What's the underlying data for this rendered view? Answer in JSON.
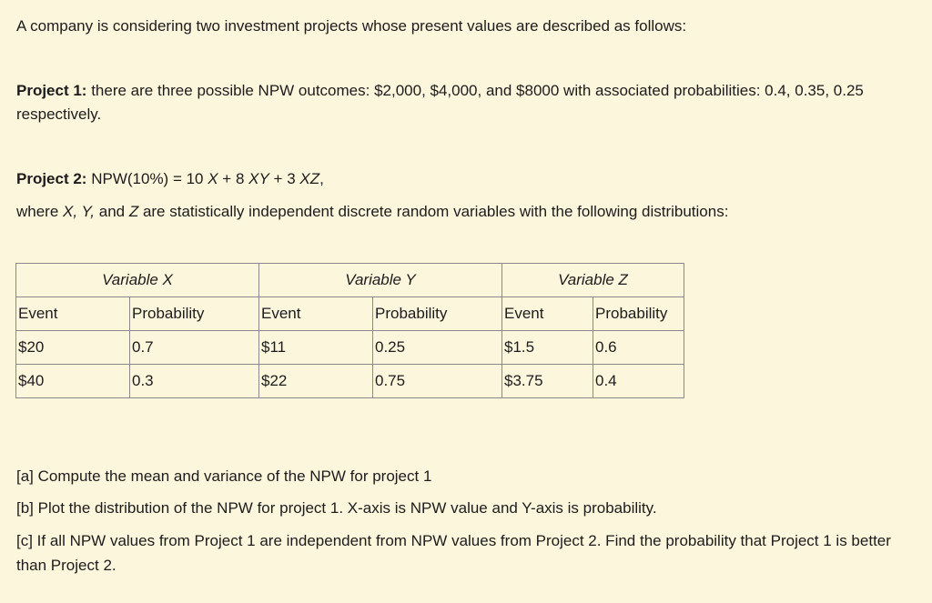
{
  "intro": "A company is considering two investment projects whose present values are described as follows:",
  "project1": {
    "label": "Project 1:",
    "text": " there are three possible NPW outcomes: $2,000, $4,000, and $8000 with associated probabilities: 0.4, 0.35, 0.25 respectively."
  },
  "project2": {
    "label": "Project 2:",
    "formula_prefix": " NPW(10%) = 10 ",
    "f_x": "X",
    "f_plus1": " + 8 ",
    "f_xy": "XY",
    "f_plus2": " + 3 ",
    "f_xz": "XZ",
    "f_end": ",",
    "where_prefix": "where ",
    "where_vars": "X, Y,",
    "where_and": " and ",
    "where_z": "Z",
    "where_suffix": " are statistically independent discrete random variables with the following distributions:"
  },
  "table": {
    "variables": [
      "Variable X",
      "Variable Y",
      "Variable Z"
    ],
    "col_event": "Event",
    "col_prob": "Probability",
    "rows": [
      [
        "$20",
        "0.7",
        "$11",
        "0.25",
        "$1.5",
        "0.6"
      ],
      [
        "$40",
        "0.3",
        "$22",
        "0.75",
        "$3.75",
        "0.4"
      ]
    ]
  },
  "questions": {
    "a": "[a] Compute the mean and variance of the NPW for project 1",
    "b": "[b] Plot the distribution of the NPW for project 1. X-axis is NPW value and Y-axis is probability.",
    "c": "[c] If all NPW values from Project 1 are independent from NPW values from Project 2. Find the probability that Project 1 is better than Project 2."
  }
}
